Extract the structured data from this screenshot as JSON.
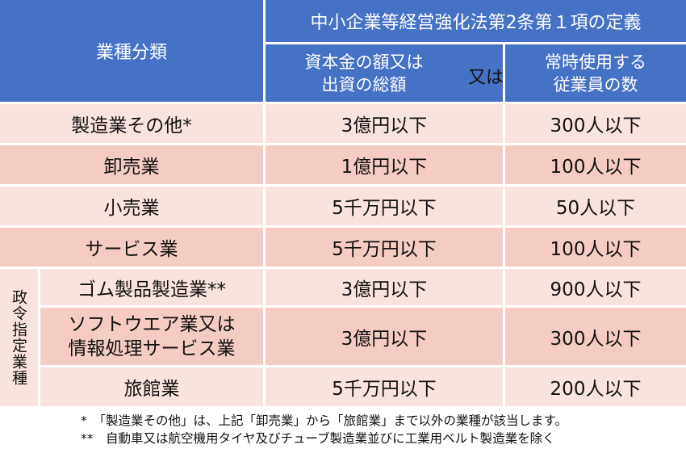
{
  "header": {
    "category": "業種分類",
    "law_title": "中小企業等経営強化法第2条第１項の定義",
    "capital_line1": "資本金の額又は",
    "capital_line2": "出資の総額",
    "or": "又は",
    "employees_line1": "常時使用する",
    "employees_line2": "従業員の数"
  },
  "group_label": "政令指定業種",
  "rows": [
    {
      "industry": "製造業その他*",
      "capital": "3億円以下",
      "employees": "300人以下"
    },
    {
      "industry": "卸売業",
      "capital": "1億円以下",
      "employees": "100人以下"
    },
    {
      "industry": "小売業",
      "capital": "5千万円以下",
      "employees": "50人以下"
    },
    {
      "industry": "サービス業",
      "capital": "5千万円以下",
      "employees": "100人以下"
    },
    {
      "industry": "ゴム製品製造業**",
      "capital": "3億円以下",
      "employees": "900人以下"
    },
    {
      "industry_line1": "ソフトウエア業又は",
      "industry_line2": "情報処理サービス業",
      "capital": "3億円以下",
      "employees": "300人以下"
    },
    {
      "industry": "旅館業",
      "capital": "5千万円以下",
      "employees": "200人以下"
    }
  ],
  "notes": {
    "note1": "*　「製造業その他」は、上記「卸売業」から「旅館業」まで以外の業種が該当します。",
    "note2": "**　自動車又は航空機用タイヤ及びチューブ製造業並びに工業用ベルト製造業を除く"
  },
  "colors": {
    "header_blue": "#4472c4",
    "row_light": "#f9e3df",
    "row_dark": "#f4ccc4"
  }
}
